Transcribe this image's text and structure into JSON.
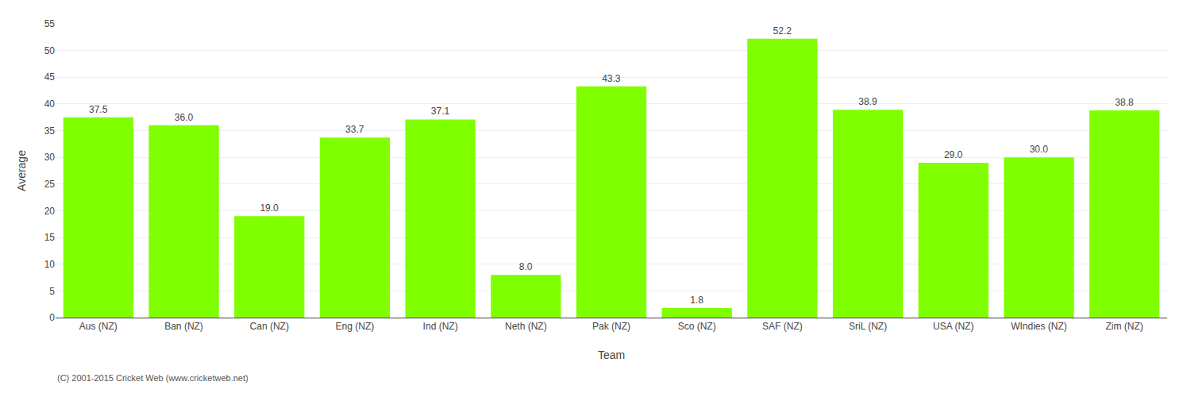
{
  "chart_data": {
    "type": "bar",
    "categories": [
      "Aus (NZ)",
      "Ban (NZ)",
      "Can (NZ)",
      "Eng (NZ)",
      "Ind (NZ)",
      "Neth (NZ)",
      "Pak (NZ)",
      "Sco (NZ)",
      "SAF (NZ)",
      "SriL (NZ)",
      "USA (NZ)",
      "WIndies (NZ)",
      "Zim (NZ)"
    ],
    "values": [
      37.5,
      36.0,
      19.0,
      33.7,
      37.1,
      8.0,
      43.3,
      1.8,
      52.2,
      38.9,
      29.0,
      30.0,
      38.8
    ],
    "value_labels": [
      "37.5",
      "36.0",
      "19.0",
      "33.7",
      "37.1",
      "8.0",
      "43.3",
      "1.8",
      "52.2",
      "38.9",
      "29.0",
      "30.0",
      "38.8"
    ],
    "data_labels": true,
    "color": "#7FFF00",
    "xlabel": "Team",
    "ylabel": "Average",
    "ylim": [
      0,
      55
    ],
    "yticks": [
      0,
      5,
      10,
      15,
      20,
      25,
      30,
      35,
      40,
      45,
      50,
      55
    ],
    "grid": true,
    "annotations": [
      "(C) 2001-2015 Cricket Web (www.cricketweb.net)"
    ]
  }
}
